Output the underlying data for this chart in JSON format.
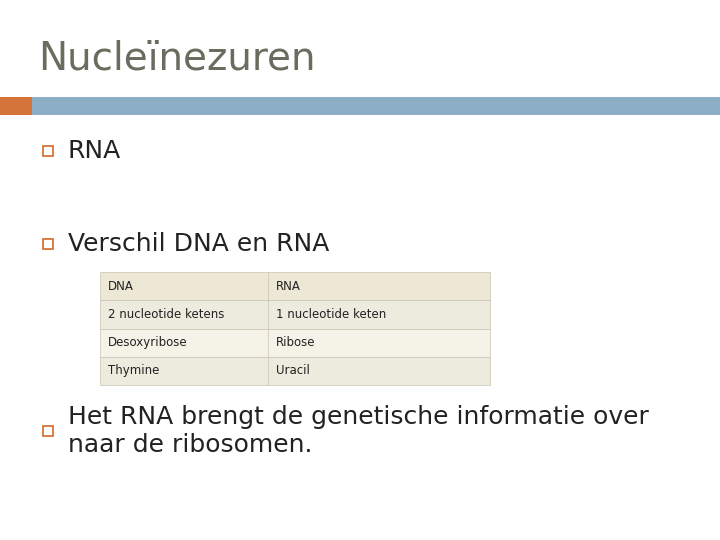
{
  "title": "Nucleïnezuren",
  "title_color": "#6b6b5e",
  "title_fontsize": 28,
  "header_bar_color": "#8daec7",
  "header_bar_accent_color": "#d4743a",
  "bg_color": "#ffffff",
  "bullet_color": "#d4743a",
  "bullet_items": [
    "RNA",
    "Verschil DNA en RNA",
    "Het RNA brengt de genetische informatie over\nnaar de ribosomen."
  ],
  "bullet_fontsizes": [
    18,
    18,
    18
  ],
  "table_bg_color": "#f5f2e8",
  "table_header_bg": "#ede8d5",
  "table_row2_bg": "#edeade",
  "table_row3_bg": "#f5f2e8",
  "table_row4_bg": "#edeade",
  "table_col1": [
    "DNA",
    "2 nucleotide ketens",
    "Desoxyribose",
    "Thymine"
  ],
  "table_col2": [
    "RNA",
    "1 nucleotide keten",
    "Ribose",
    "Uracil"
  ],
  "table_fontsize": 8.5,
  "text_color": "#222222"
}
